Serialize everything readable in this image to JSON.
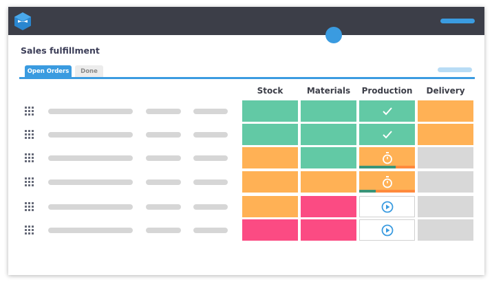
{
  "app": {
    "title": "Sales fulfillment",
    "logo": "hexagon-logo"
  },
  "tabs": [
    {
      "label": "Open Orders",
      "active": true
    },
    {
      "label": "Done",
      "active": false
    }
  ],
  "columns": [
    "Stock",
    "Materials",
    "Production",
    "Delivery"
  ],
  "colors": {
    "green": "#62c9a5",
    "orange": "#ffb155",
    "pink": "#fb4b83",
    "gray": "#d8d8d8",
    "blue": "#3a9be0",
    "progress_done": "#3a9478",
    "progress_rest": "#ff8a3d"
  },
  "rows": [
    {
      "stock": "green",
      "materials": "green",
      "production": {
        "status": "green",
        "icon": "check-icon"
      },
      "delivery": "orange"
    },
    {
      "stock": "green",
      "materials": "green",
      "production": {
        "status": "green",
        "icon": "check-icon"
      },
      "delivery": "orange"
    },
    {
      "stock": "orange",
      "materials": "green",
      "production": {
        "status": "orange",
        "icon": "stopwatch-icon",
        "progress": 0.66
      },
      "delivery": "gray"
    },
    {
      "stock": "orange",
      "materials": "orange",
      "production": {
        "status": "orange",
        "icon": "stopwatch-icon",
        "progress": 0.3
      },
      "delivery": "gray"
    },
    {
      "stock": "orange",
      "materials": "pink",
      "production": {
        "status": "white",
        "icon": "play-icon"
      },
      "delivery": "gray"
    },
    {
      "stock": "pink",
      "materials": "pink",
      "production": {
        "status": "white",
        "icon": "play-icon"
      },
      "delivery": "gray"
    }
  ]
}
